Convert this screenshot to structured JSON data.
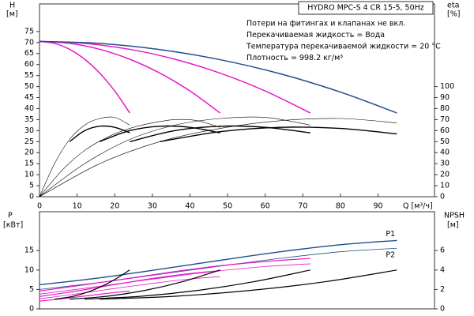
{
  "chart_data": [
    {
      "type": "line",
      "title": "HYDRO MPC-S 4 CR 15-5, 50Hz",
      "annotations": [
        "Потери на фитингах и клапанах не вкл.",
        "Перекачиваемая жидкость = Вода",
        "Температура перекачиваемой жидкости = 20 °C",
        "Плотность = 998.2 кг/м³"
      ],
      "ylabel": "H",
      "yunit": "[м]",
      "y2label": "eta",
      "y2unit": "[%]",
      "xlabel": "Q [м³/ч]",
      "xlim": [
        0,
        105
      ],
      "xticks": [
        0,
        10,
        20,
        30,
        40,
        50,
        60,
        70,
        80,
        90
      ],
      "ylim": [
        0,
        87.5
      ],
      "yticks": [
        0,
        5,
        10,
        15,
        20,
        25,
        30,
        35,
        40,
        45,
        50,
        55,
        60,
        65,
        70,
        75
      ],
      "y2lim": [
        0,
        175
      ],
      "y2ticks": [
        0,
        10,
        20,
        30,
        40,
        50,
        60,
        70,
        80,
        90,
        100
      ],
      "grid": false,
      "series": [
        {
          "color": "#e619c8",
          "line_width": 1.5,
          "x": [
            0,
            4,
            8,
            12,
            16,
            20,
            24
          ],
          "values": [
            70.5,
            69.6,
            66.9,
            62.4,
            56.1,
            48.0,
            38.0
          ]
        },
        {
          "color": "#e619c8",
          "line_width": 1.5,
          "x": [
            0,
            8,
            16,
            24,
            32,
            40,
            48
          ],
          "values": [
            70.5,
            69.6,
            66.9,
            62.4,
            56.1,
            48.0,
            38.0
          ]
        },
        {
          "color": "#e619c8",
          "line_width": 1.5,
          "x": [
            0,
            12,
            24,
            36,
            48,
            60,
            72
          ],
          "values": [
            70.5,
            69.6,
            66.9,
            62.4,
            56.1,
            48.0,
            38.0
          ]
        },
        {
          "color": "#1f4e8c",
          "line_width": 1.5,
          "x": [
            0,
            16,
            32,
            48,
            64,
            80,
            95
          ],
          "values": [
            70.5,
            69.6,
            66.8,
            62.2,
            55.8,
            47.5,
            38.0
          ]
        },
        {
          "color": "#000000",
          "line_width": 0.6,
          "axis": "y2",
          "x": [
            0,
            4,
            8,
            12,
            16,
            20,
            24
          ],
          "values": [
            0,
            30,
            52,
            65,
            71,
            72,
            65
          ]
        },
        {
          "color": "#000000",
          "line_width": 0.6,
          "axis": "y2",
          "x": [
            0,
            6,
            12,
            18,
            24,
            30,
            36,
            42,
            48
          ],
          "values": [
            0,
            24,
            42,
            54,
            62,
            67,
            70,
            69,
            63
          ]
        },
        {
          "color": "#000000",
          "line_width": 0.6,
          "axis": "y2",
          "x": [
            0,
            12,
            24,
            36,
            48,
            60,
            72
          ],
          "values": [
            0,
            30,
            52,
            65,
            71,
            72,
            65
          ]
        },
        {
          "color": "#000000",
          "line_width": 0.6,
          "axis": "y2",
          "x": [
            0,
            16,
            32,
            48,
            64,
            80,
            95
          ],
          "values": [
            0,
            30,
            50,
            62,
            69,
            71,
            67
          ]
        },
        {
          "color": "#000000",
          "line_width": 1.4,
          "axis": "y2",
          "x": [
            8,
            12,
            16,
            20,
            24
          ],
          "values": [
            50,
            60,
            64,
            63,
            58
          ]
        },
        {
          "color": "#000000",
          "line_width": 1.4,
          "axis": "y2",
          "x": [
            16,
            24,
            32,
            40,
            48
          ],
          "values": [
            50,
            60,
            64,
            63,
            58
          ]
        },
        {
          "color": "#000000",
          "line_width": 1.4,
          "axis": "y2",
          "x": [
            24,
            36,
            48,
            60,
            72
          ],
          "values": [
            50,
            60,
            64,
            63,
            58
          ]
        },
        {
          "color": "#000000",
          "line_width": 1.4,
          "axis": "y2",
          "x": [
            32,
            48,
            64,
            80,
            95
          ],
          "values": [
            50,
            59,
            63,
            62,
            57
          ]
        }
      ]
    },
    {
      "type": "line",
      "ylabel": "P",
      "yunit": "[кВт]",
      "y2label": "NPSH",
      "y2unit": "[м]",
      "xlim": [
        0,
        105
      ],
      "ylim": [
        0,
        25
      ],
      "yticks": [
        0,
        5,
        10,
        15
      ],
      "y2lim": [
        0,
        10
      ],
      "y2ticks": [
        0,
        2,
        4,
        6
      ],
      "grid": false,
      "series": [
        {
          "name": "P1",
          "color": "#1f4e8c",
          "line_width": 1.4,
          "x": [
            0,
            16,
            32,
            48,
            64,
            80,
            95
          ],
          "values": [
            6.2,
            8.0,
            10.2,
            12.5,
            14.7,
            16.5,
            17.6
          ]
        },
        {
          "name": "P2",
          "color": "#1f4e8c",
          "line_width": 0.8,
          "x": [
            0,
            16,
            32,
            48,
            64,
            80,
            95
          ],
          "values": [
            5.0,
            6.8,
            8.9,
            11.0,
            13.0,
            14.7,
            15.6
          ]
        },
        {
          "color": "#e619c8",
          "line_width": 1.2,
          "x": [
            0,
            12,
            24,
            36,
            48,
            60,
            72
          ],
          "values": [
            4.6,
            6.2,
            7.9,
            9.6,
            11.1,
            12.2,
            13.0
          ]
        },
        {
          "color": "#e619c8",
          "line_width": 0.8,
          "x": [
            0,
            12,
            24,
            36,
            48,
            60,
            72
          ],
          "values": [
            3.8,
            5.3,
            6.9,
            8.4,
            9.8,
            10.9,
            11.6
          ]
        },
        {
          "color": "#e619c8",
          "line_width": 1.2,
          "x": [
            0,
            8,
            16,
            24,
            32,
            40,
            48
          ],
          "values": [
            3.2,
            4.3,
            5.6,
            6.9,
            8.1,
            9.1,
            9.8
          ]
        },
        {
          "color": "#e619c8",
          "line_width": 0.8,
          "x": [
            0,
            8,
            16,
            24,
            32,
            40,
            48
          ],
          "values": [
            2.6,
            3.6,
            4.7,
            5.8,
            6.8,
            7.7,
            8.3
          ]
        },
        {
          "color": "#e619c8",
          "line_width": 1.2,
          "x": [
            0,
            6,
            12,
            18,
            24
          ],
          "values": [
            2.0,
            2.6,
            3.3,
            4.0,
            4.6
          ]
        },
        {
          "color": "#000000",
          "line_width": 1.2,
          "axis": "y2",
          "x": [
            4,
            9,
            14,
            19,
            24
          ],
          "values": [
            1.0,
            1.3,
            1.9,
            2.8,
            4.0
          ]
        },
        {
          "color": "#000000",
          "line_width": 1.2,
          "axis": "y2",
          "x": [
            8,
            18,
            28,
            38,
            48
          ],
          "values": [
            1.0,
            1.3,
            1.9,
            2.8,
            4.0
          ]
        },
        {
          "color": "#000000",
          "line_width": 1.2,
          "axis": "y2",
          "x": [
            12,
            27,
            42,
            57,
            72
          ],
          "values": [
            1.0,
            1.3,
            1.9,
            2.8,
            4.0
          ]
        },
        {
          "color": "#000000",
          "line_width": 1.2,
          "axis": "y2",
          "x": [
            16,
            36,
            56,
            76,
            95
          ],
          "values": [
            1.0,
            1.3,
            1.9,
            2.8,
            4.0
          ]
        }
      ]
    }
  ]
}
